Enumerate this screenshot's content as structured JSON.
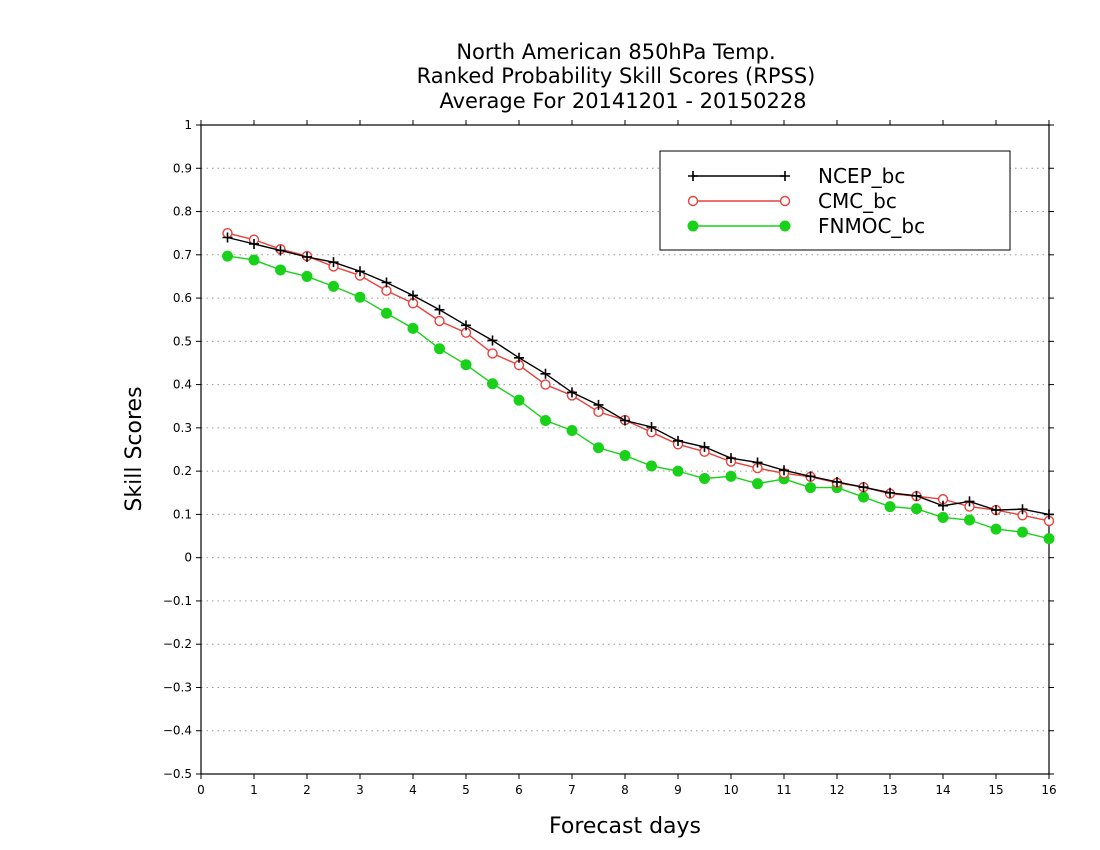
{
  "chart_data": {
    "type": "line",
    "title": [
      "North American 850hPa Temp.",
      "Ranked Probability Skill Scores (RPSS)",
      "Average For 20141201 - 20150228"
    ],
    "xlabel": "Forecast days",
    "ylabel": "Skill Scores",
    "xlim": [
      0,
      16
    ],
    "ylim": [
      -0.5,
      1
    ],
    "xticks": [
      0,
      1,
      2,
      3,
      4,
      5,
      6,
      7,
      8,
      9,
      10,
      11,
      12,
      13,
      14,
      15,
      16
    ],
    "yticks": [
      -0.5,
      -0.4,
      -0.3,
      -0.2,
      -0.1,
      0,
      0.1,
      0.2,
      0.3,
      0.4,
      0.5,
      0.6,
      0.7,
      0.8,
      0.9,
      1
    ],
    "xtick_labels": [
      "0",
      "1",
      "2",
      "3",
      "4",
      "5",
      "6",
      "7",
      "8",
      "9",
      "10",
      "11",
      "12",
      "13",
      "14",
      "15",
      "16"
    ],
    "ytick_labels": [
      "−0.5",
      "−0.4",
      "−0.3",
      "−0.2",
      "−0.1",
      "0",
      "0.1",
      "0.2",
      "0.3",
      "0.4",
      "0.5",
      "0.6",
      "0.7",
      "0.8",
      "0.9",
      "1"
    ],
    "grid": "horizontal-dotted",
    "legend_position": "top-right",
    "x": [
      0.5,
      1,
      1.5,
      2,
      2.5,
      3,
      3.5,
      4,
      4.5,
      5,
      5.5,
      6,
      6.5,
      7,
      7.5,
      8,
      8.5,
      9,
      9.5,
      10,
      10.5,
      11,
      11.5,
      12,
      12.5,
      13,
      13.5,
      14,
      14.5,
      15,
      15.5,
      16
    ],
    "series": [
      {
        "name": "NCEP_bc",
        "color": "#000000",
        "marker": "plus",
        "values": [
          0.74,
          0.725,
          0.71,
          0.695,
          0.683,
          0.662,
          0.636,
          0.606,
          0.573,
          0.537,
          0.502,
          0.462,
          0.425,
          0.382,
          0.353,
          0.317,
          0.302,
          0.27,
          0.256,
          0.23,
          0.22,
          0.202,
          0.188,
          0.175,
          0.163,
          0.15,
          0.143,
          0.12,
          0.13,
          0.11,
          0.112,
          0.1
        ]
      },
      {
        "name": "CMC_bc",
        "color": "#e8413c",
        "marker": "open-circle",
        "values": [
          0.75,
          0.735,
          0.713,
          0.697,
          0.673,
          0.652,
          0.617,
          0.588,
          0.547,
          0.52,
          0.472,
          0.445,
          0.4,
          0.375,
          0.337,
          0.318,
          0.29,
          0.262,
          0.245,
          0.222,
          0.207,
          0.195,
          0.187,
          0.173,
          0.163,
          0.148,
          0.142,
          0.135,
          0.118,
          0.11,
          0.098,
          0.085
        ]
      },
      {
        "name": "FNMOC_bc",
        "color": "#19d119",
        "marker": "filled-circle",
        "values": [
          0.697,
          0.688,
          0.665,
          0.65,
          0.627,
          0.602,
          0.565,
          0.53,
          0.483,
          0.446,
          0.402,
          0.364,
          0.317,
          0.294,
          0.254,
          0.236,
          0.212,
          0.2,
          0.183,
          0.188,
          0.171,
          0.182,
          0.162,
          0.162,
          0.14,
          0.118,
          0.113,
          0.093,
          0.087,
          0.066,
          0.059,
          0.044
        ]
      }
    ]
  }
}
